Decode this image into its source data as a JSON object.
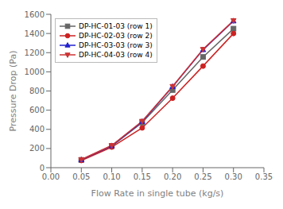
{
  "chart_data": {
    "type": "line",
    "xlabel": "Flow Rate in single tube (kg/s)",
    "ylabel": "Pressure Drop (Pa)",
    "x": [
      0.05,
      0.1,
      0.15,
      0.2,
      0.25,
      0.3
    ],
    "series": [
      {
        "name": "DP-HC-01-03 (row 1)",
        "color": "#666666",
        "marker": "square",
        "values": [
          80,
          225,
          470,
          810,
          1155,
          1450
        ]
      },
      {
        "name": "DP-HC-02-03 (row 2)",
        "color": "#cc2222",
        "marker": "circle",
        "values": [
          75,
          215,
          415,
          725,
          1060,
          1400
        ]
      },
      {
        "name": "DP-HC-03-03 (row 3)",
        "color": "#2222cc",
        "marker": "triangle",
        "values": [
          82,
          228,
          480,
          845,
          1230,
          1530
        ]
      },
      {
        "name": "DP-HC-04-03 (row 4)",
        "color": "#cc3333",
        "marker": "triangle_down",
        "values": [
          85,
          232,
          485,
          848,
          1235,
          1535
        ]
      }
    ],
    "xlim": [
      0.0,
      0.35
    ],
    "ylim": [
      0,
      1600
    ],
    "xticks": [
      {
        "value": 0,
        "label": "0.00"
      },
      0.05,
      {
        "value": 0.1,
        "label": "0.10"
      },
      0.15,
      {
        "value": 0.2,
        "label": "0.20"
      },
      0.25,
      {
        "value": 0.3,
        "label": "0.30"
      },
      0.35
    ],
    "yticks": [
      0,
      200,
      400,
      600,
      800,
      1000,
      1200,
      1400,
      1600
    ],
    "grid": false,
    "legend": "upper left"
  }
}
